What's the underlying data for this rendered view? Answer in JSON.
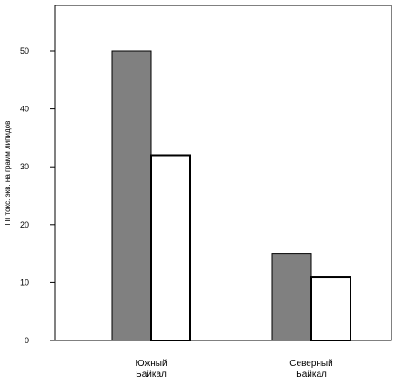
{
  "chart_data": {
    "type": "bar",
    "title": "",
    "xlabel": "",
    "ylabel": "Пг токс. экв. на грамм липидов",
    "categories": [
      [
        "Южный",
        "Байкал"
      ],
      [
        "Северный",
        "Байкал"
      ]
    ],
    "series": [
      {
        "values": [
          50,
          15
        ],
        "color": "#808080"
      },
      {
        "values": [
          32,
          11
        ],
        "color": "#ffffff"
      }
    ],
    "ylim": [
      0,
      58
    ],
    "yticks": [
      0,
      10,
      20,
      30,
      40,
      50
    ],
    "grid": false,
    "legend": "none"
  }
}
